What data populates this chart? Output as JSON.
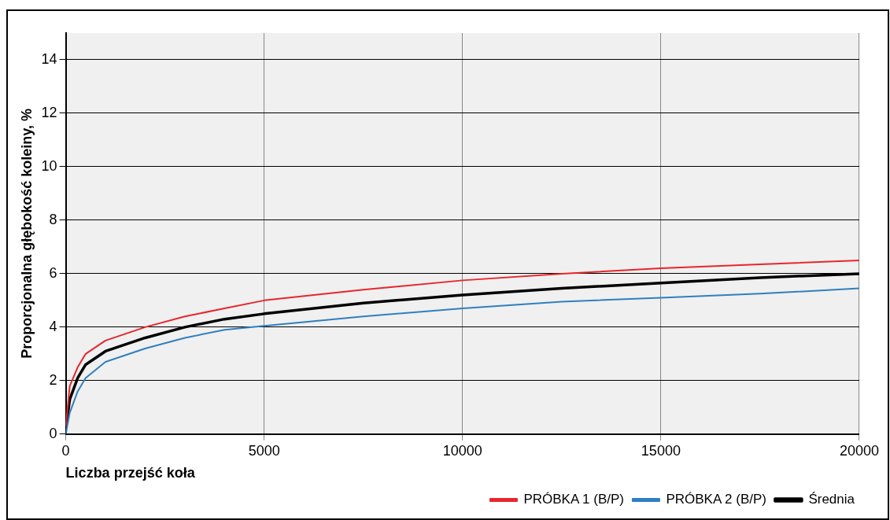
{
  "chart_data": {
    "type": "line",
    "xlabel": "Liczba przejść koła",
    "ylabel": "Proporcjonalna głębokość koleiny, %",
    "x": [
      0,
      100,
      300,
      500,
      1000,
      2000,
      3000,
      4000,
      5000,
      7500,
      10000,
      12500,
      15000,
      17500,
      20000
    ],
    "series": [
      {
        "name": "PRÓBKA 1 (B/P)",
        "color": "#e8262d",
        "values": [
          0.3,
          1.8,
          2.5,
          3.0,
          3.5,
          4.0,
          4.4,
          4.7,
          5.0,
          5.4,
          5.75,
          6.0,
          6.2,
          6.35,
          6.5
        ]
      },
      {
        "name": "PRÓBKA 2 (B/P)",
        "color": "#2f7fc1",
        "values": [
          0,
          0.8,
          1.6,
          2.1,
          2.7,
          3.2,
          3.6,
          3.9,
          4.05,
          4.4,
          4.7,
          4.95,
          5.1,
          5.25,
          5.45
        ]
      },
      {
        "name": "Średnia",
        "color": "#000000",
        "values": [
          0.2,
          1.3,
          2.1,
          2.6,
          3.1,
          3.6,
          4.0,
          4.3,
          4.5,
          4.9,
          5.2,
          5.45,
          5.65,
          5.85,
          6.0
        ]
      }
    ],
    "xlim": [
      0,
      20000
    ],
    "xticks": [
      0,
      5000,
      10000,
      15000,
      20000
    ],
    "ylim": [
      0,
      15
    ],
    "yticks": [
      0,
      2,
      4,
      6,
      8,
      10,
      12,
      14
    ],
    "grid": true,
    "legend": "bottom right",
    "marker": "none",
    "line_style": "solid"
  }
}
